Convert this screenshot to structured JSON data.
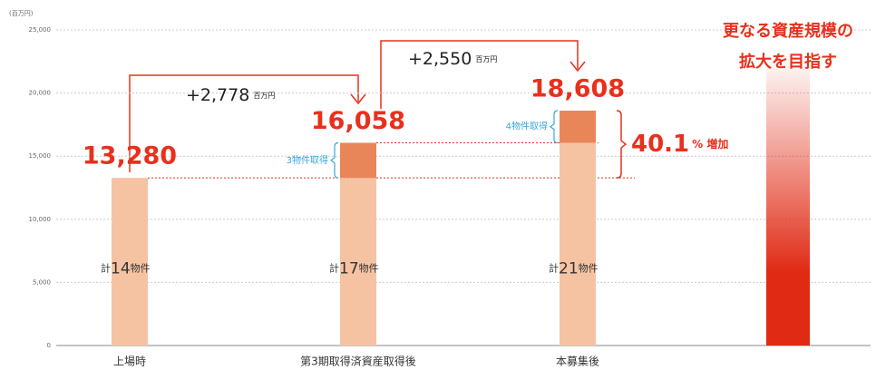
{
  "chart_data": {
    "type": "bar",
    "stacked": true,
    "y_unit": "(百万円)",
    "categories": [
      "上場時",
      "第3期取得済資産取得後",
      "本募集後",
      null
    ],
    "series": [
      {
        "color": "#f6c3a2",
        "values": [
          13280,
          13280,
          16058,
          null
        ]
      },
      {
        "color": "#e8865a",
        "values": [
          null,
          2778,
          2550,
          null
        ],
        "value_labels": [
          null,
          "+2,778",
          "+2,550",
          null
        ]
      },
      {
        "color": "#e02a14",
        "values": [
          null,
          null,
          null,
          23000
        ]
      }
    ],
    "increment_unit": "百万円",
    "totals": [
      13280,
      16058,
      18608,
      null
    ],
    "total_labels": [
      "13,280",
      "16,058",
      "18,608",
      null
    ],
    "acquisitions": [
      null,
      "3物件取得",
      "4物件取得",
      null
    ],
    "count_prefix": "計",
    "count_suffix": "物件",
    "property_counts": [
      14,
      17,
      21,
      null
    ],
    "increase": {
      "value": 40.1,
      "unit": "% 増加"
    },
    "goal": [
      "更なる資産規模の",
      "拡大を目指す"
    ],
    "ylim": [
      0,
      25000
    ],
    "yticks": [
      0,
      {
        "value": 5000,
        "label": "5,000"
      },
      {
        "value": 10000,
        "label": "10,000"
      },
      {
        "value": 15000,
        "label": "15,000"
      },
      {
        "value": 20000,
        "label": "20,000"
      },
      {
        "value": 25000,
        "label": "25,000"
      }
    ],
    "grid": true
  }
}
